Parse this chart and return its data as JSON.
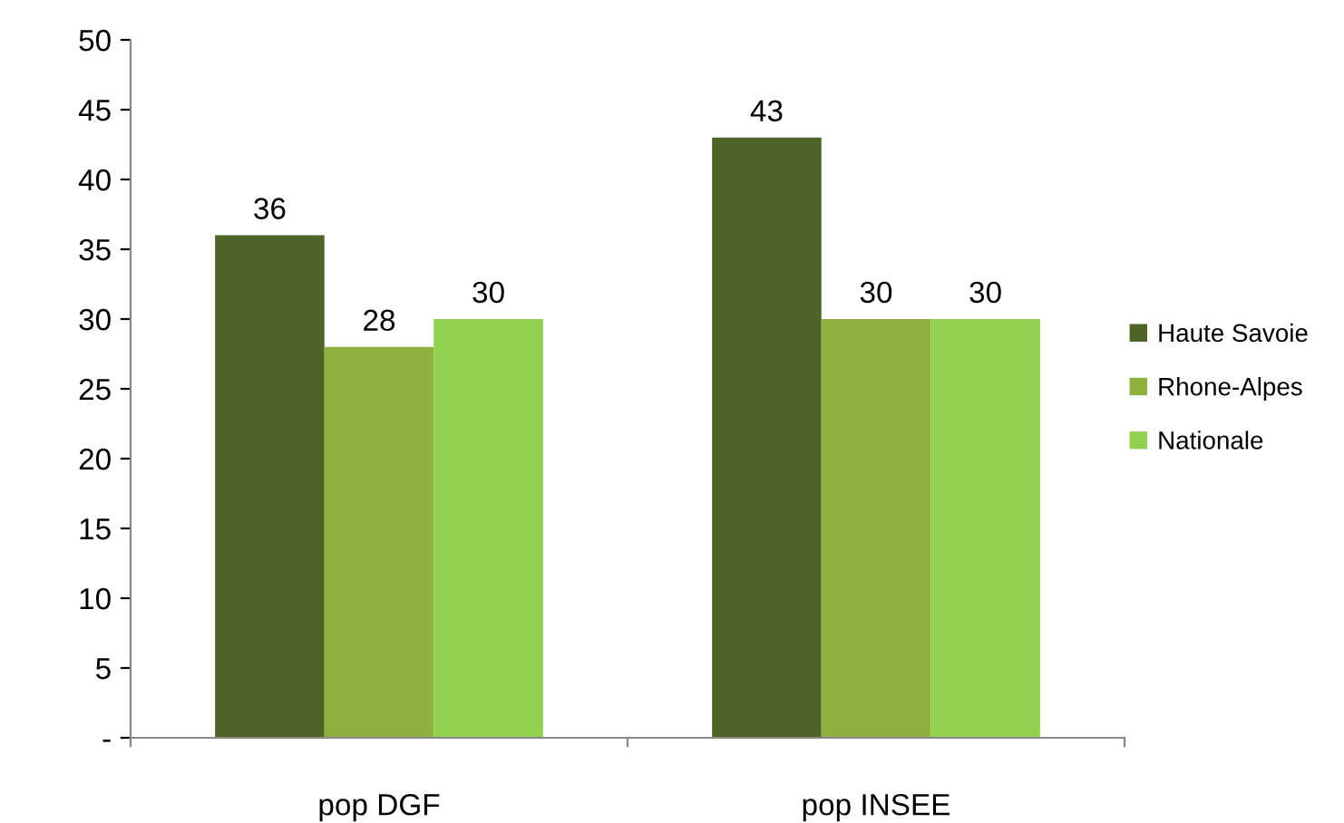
{
  "chart_data": {
    "type": "bar",
    "categories": [
      "pop DGF",
      "pop INSEE"
    ],
    "series": [
      {
        "name": "Haute Savoie",
        "color": "#4f6228",
        "values": [
          36,
          43
        ]
      },
      {
        "name": "Rhone-Alpes",
        "color": "#8db03e",
        "values": [
          28,
          30
        ]
      },
      {
        "name": "Nationale",
        "color": "#92d050",
        "values": [
          30,
          30
        ]
      }
    ],
    "ylim": [
      0,
      50
    ],
    "yticks": [
      {
        "value": 0,
        "label": "-"
      },
      5,
      10,
      15,
      20,
      25,
      30,
      35,
      40,
      45,
      50
    ],
    "data_labels": true,
    "grid": false,
    "legend": "right"
  }
}
